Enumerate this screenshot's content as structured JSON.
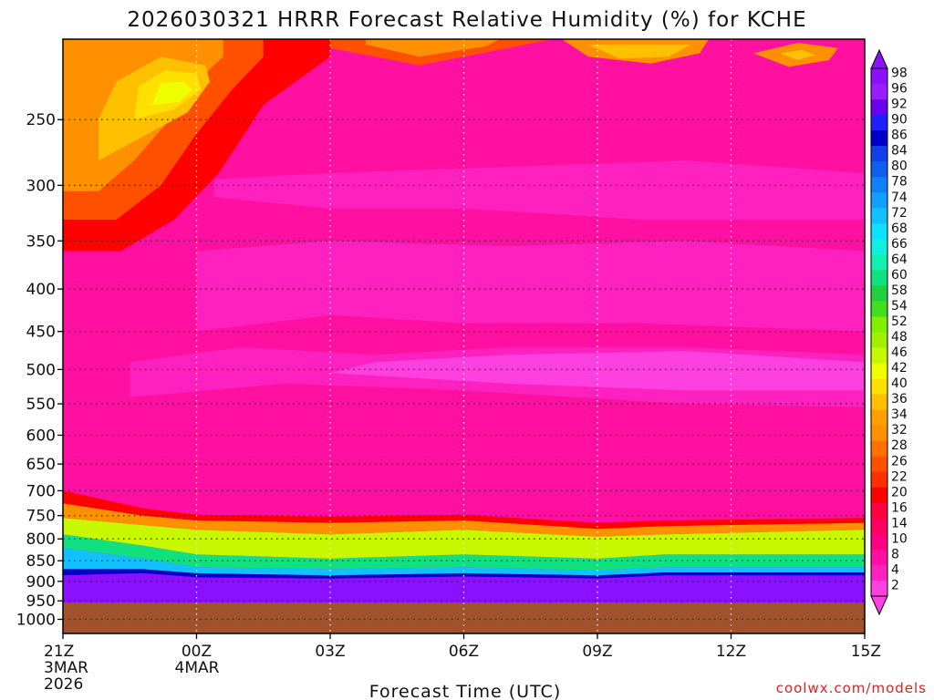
{
  "chart_data": {
    "type": "heatmap",
    "title": "2026030321 HRRR Forecast Relative Humidity (%) for KCHE",
    "xlabel": "Forecast Time (UTC)",
    "ylabel": "",
    "credit": "coolwx.com/models",
    "y_axis": {
      "scale": "pressure",
      "ylim": [
        1040,
        200
      ],
      "ticks": [
        "250",
        "300",
        "350",
        "400",
        "450",
        "500",
        "550",
        "600",
        "650",
        "700",
        "750",
        "800",
        "850",
        "900",
        "950",
        "1000"
      ]
    },
    "x_axis": {
      "xlim": [
        0,
        18
      ],
      "ticks": [
        {
          "label": "21Z",
          "sub1": "3MAR",
          "sub2": "2026"
        },
        {
          "label": "00Z",
          "sub1": "4MAR",
          "sub2": ""
        },
        {
          "label": "03Z",
          "sub1": "",
          "sub2": ""
        },
        {
          "label": "06Z",
          "sub1": "",
          "sub2": ""
        },
        {
          "label": "09Z",
          "sub1": "",
          "sub2": ""
        },
        {
          "label": "12Z",
          "sub1": "",
          "sub2": ""
        },
        {
          "label": "15Z",
          "sub1": "",
          "sub2": ""
        }
      ]
    },
    "grid": true,
    "colorbar": {
      "placement": "right",
      "labels": [
        "98",
        "96",
        "92",
        "90",
        "86",
        "84",
        "80",
        "78",
        "74",
        "72",
        "68",
        "66",
        "64",
        "60",
        "58",
        "54",
        "52",
        "48",
        "46",
        "42",
        "40",
        "36",
        "34",
        "32",
        "28",
        "26",
        "22",
        "20",
        "16",
        "14",
        "10",
        "8",
        "4",
        "2"
      ],
      "colors": [
        "#8a10ff",
        "#9a1cff",
        "#6a00f0",
        "#2020ff",
        "#0000c8",
        "#1040e8",
        "#1060f0",
        "#1080f8",
        "#10a0ff",
        "#10c0ff",
        "#10e0ff",
        "#10f0e0",
        "#10f0b0",
        "#10e080",
        "#20d040",
        "#40e020",
        "#80f000",
        "#a0f000",
        "#c8f800",
        "#f0ff00",
        "#ffe000",
        "#ffc000",
        "#ffa000",
        "#ff9000",
        "#ff7000",
        "#ff5000",
        "#ff3000",
        "#ff0000",
        "#ff0040",
        "#ff0060",
        "#ff0080",
        "#ff10a0",
        "#ff20c0",
        "#ff40e0"
      ]
    },
    "surface_below_hpa": 955,
    "surface_color": "#a0522d",
    "bands": [
      {
        "rh": 2,
        "x": [
          0,
          18
        ],
        "p_top": [
          0,
          0
        ],
        "p_bot": [
          0,
          0
        ]
      },
      {
        "rh": 98,
        "x": [
          0,
          1.8,
          3,
          6,
          9,
          12,
          13.5,
          18
        ],
        "p_top": [
          885,
          880,
          890,
          893,
          888,
          893,
          885,
          885
        ],
        "p_bot": [
          955,
          955,
          955,
          955,
          955,
          955,
          955,
          955
        ]
      },
      {
        "rh": 86,
        "x": [
          0,
          1.8,
          3,
          6,
          9,
          12,
          13.5,
          18
        ],
        "p_top": [
          870,
          870,
          880,
          885,
          880,
          885,
          878,
          878
        ],
        "p_bot": [
          885,
          880,
          890,
          893,
          888,
          893,
          885,
          885
        ]
      },
      {
        "rh": 72,
        "x": [
          0,
          1.8,
          3,
          6,
          9,
          12,
          13.5,
          18
        ],
        "p_top": [
          820,
          845,
          865,
          870,
          865,
          873,
          865,
          865
        ],
        "p_bot": [
          870,
          870,
          880,
          885,
          880,
          885,
          878,
          878
        ]
      },
      {
        "rh": 60,
        "x": [
          0,
          1.8,
          3,
          6,
          9,
          12,
          13.5,
          18
        ],
        "p_top": [
          790,
          815,
          835,
          845,
          835,
          845,
          835,
          835
        ],
        "p_bot": [
          820,
          845,
          865,
          870,
          865,
          873,
          865,
          865
        ]
      },
      {
        "rh": 46,
        "x": [
          0,
          1.8,
          3,
          6,
          9,
          12,
          13.5,
          18
        ],
        "p_top": [
          755,
          770,
          780,
          790,
          780,
          795,
          790,
          780
        ],
        "p_bot": [
          790,
          815,
          835,
          845,
          835,
          845,
          835,
          835
        ]
      },
      {
        "rh": 32,
        "x": [
          0,
          1.8,
          3,
          6,
          9,
          12,
          13.5,
          18
        ],
        "p_top": [
          725,
          750,
          760,
          765,
          760,
          778,
          772,
          765
        ],
        "p_bot": [
          755,
          770,
          780,
          790,
          780,
          795,
          790,
          780
        ]
      },
      {
        "rh": 20,
        "x": [
          0,
          1.8,
          3,
          6,
          9,
          12,
          13.5,
          18
        ],
        "p_top": [
          700,
          735,
          748,
          752,
          748,
          765,
          760,
          755
        ],
        "p_bot": [
          725,
          750,
          760,
          765,
          760,
          778,
          772,
          765
        ]
      }
    ],
    "blobs": [
      {
        "rh": 8,
        "pts": [
          [
            0,
            700
          ],
          [
            4,
            690
          ],
          [
            8,
            670
          ],
          [
            12,
            680
          ],
          [
            18,
            690
          ],
          [
            18,
            560
          ],
          [
            14,
            530
          ],
          [
            10,
            520
          ],
          [
            6,
            520
          ],
          [
            2,
            560
          ],
          [
            0,
            600
          ]
        ]
      },
      {
        "rh": 4,
        "pts": [
          [
            1.5,
            540
          ],
          [
            5,
            520
          ],
          [
            9,
            530
          ],
          [
            14,
            550
          ],
          [
            18,
            555
          ],
          [
            18,
            480
          ],
          [
            14,
            470
          ],
          [
            10,
            470
          ],
          [
            7,
            480
          ],
          [
            4,
            470
          ],
          [
            1.5,
            490
          ]
        ]
      },
      {
        "rh": 2,
        "pts": [
          [
            6,
            505
          ],
          [
            10,
            520
          ],
          [
            14,
            530
          ],
          [
            18,
            530
          ],
          [
            18,
            490
          ],
          [
            14,
            475
          ],
          [
            10,
            480
          ],
          [
            7,
            490
          ]
        ]
      },
      {
        "rh": 4,
        "pts": [
          [
            3.4,
            310
          ],
          [
            6,
            320
          ],
          [
            9,
            320
          ],
          [
            13,
            330
          ],
          [
            18,
            330
          ],
          [
            18,
            290
          ],
          [
            14,
            280
          ],
          [
            10,
            285
          ],
          [
            6,
            290
          ],
          [
            3.4,
            295
          ]
        ]
      },
      {
        "rh": 4,
        "pts": [
          [
            3,
            450
          ],
          [
            6,
            430
          ],
          [
            9,
            440
          ],
          [
            13,
            440
          ],
          [
            18,
            450
          ],
          [
            18,
            360
          ],
          [
            14,
            350
          ],
          [
            10,
            355
          ],
          [
            6,
            350
          ],
          [
            3,
            360
          ]
        ]
      },
      {
        "rh": 20,
        "pts": [
          [
            0,
            360
          ],
          [
            1.3,
            360
          ],
          [
            2.5,
            330
          ],
          [
            3.5,
            290
          ],
          [
            4.5,
            240
          ],
          [
            6,
            210
          ],
          [
            6,
            200
          ],
          [
            0,
            200
          ]
        ]
      },
      {
        "rh": 26,
        "pts": [
          [
            0,
            330
          ],
          [
            1.2,
            330
          ],
          [
            2.2,
            300
          ],
          [
            3,
            260
          ],
          [
            3.8,
            230
          ],
          [
            4.5,
            210
          ],
          [
            4.5,
            200
          ],
          [
            0,
            200
          ]
        ]
      },
      {
        "rh": 32,
        "pts": [
          [
            0,
            305
          ],
          [
            0.8,
            305
          ],
          [
            1.6,
            280
          ],
          [
            2.4,
            250
          ],
          [
            3,
            225
          ],
          [
            3.6,
            210
          ],
          [
            3.6,
            200
          ],
          [
            0,
            200
          ]
        ]
      },
      {
        "rh": 36,
        "pts": [
          [
            0.8,
            280
          ],
          [
            1.8,
            262
          ],
          [
            2.8,
            245
          ],
          [
            3.3,
            225
          ],
          [
            3.2,
            215
          ],
          [
            2.2,
            210
          ],
          [
            1.2,
            225
          ],
          [
            0.8,
            250
          ]
        ]
      },
      {
        "rh": 40,
        "pts": [
          [
            1.6,
            250
          ],
          [
            2.5,
            243
          ],
          [
            3.1,
            230
          ],
          [
            3.0,
            220
          ],
          [
            2.3,
            218
          ],
          [
            1.7,
            228
          ]
        ]
      },
      {
        "rh": 42,
        "pts": [
          [
            2.0,
            240
          ],
          [
            2.6,
            238
          ],
          [
            2.9,
            230
          ],
          [
            2.7,
            225
          ],
          [
            2.2,
            226
          ]
        ]
      },
      {
        "rh": 26,
        "pts": [
          [
            6,
            205
          ],
          [
            8,
            215
          ],
          [
            10,
            205
          ],
          [
            11,
            200
          ],
          [
            6,
            200
          ]
        ]
      },
      {
        "rh": 32,
        "pts": [
          [
            6.8,
            203
          ],
          [
            8,
            210
          ],
          [
            9.5,
            204
          ],
          [
            9.8,
            200
          ],
          [
            6.8,
            200
          ]
        ]
      },
      {
        "rh": 32,
        "pts": [
          [
            11.2,
            200
          ],
          [
            11.8,
            210
          ],
          [
            13.2,
            214
          ],
          [
            14.3,
            208
          ],
          [
            14.5,
            200
          ]
        ]
      },
      {
        "rh": 36,
        "pts": [
          [
            11.8,
            203
          ],
          [
            12.5,
            211
          ],
          [
            13.6,
            210
          ],
          [
            14.1,
            203
          ]
        ]
      },
      {
        "rh": 32,
        "pts": [
          [
            15.5,
            208
          ],
          [
            16.3,
            216
          ],
          [
            17.2,
            212
          ],
          [
            17.4,
            205
          ],
          [
            16.5,
            202
          ]
        ]
      },
      {
        "rh": 36,
        "pts": [
          [
            16.1,
            208
          ],
          [
            16.5,
            212
          ],
          [
            16.9,
            209
          ],
          [
            16.6,
            206
          ]
        ]
      }
    ]
  }
}
